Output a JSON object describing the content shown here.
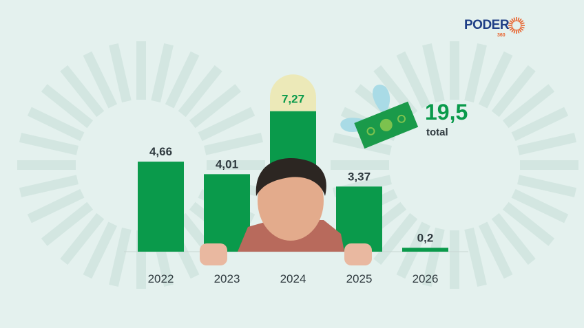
{
  "brand": {
    "logo": "PODER",
    "logo_sub": "360",
    "logo_color": "#1f3f86",
    "sun_color": "#e8612b"
  },
  "total": {
    "value": "19,5",
    "label": "total",
    "icon": "flying-money-icon"
  },
  "colors": {
    "bar": "#0a9a4b",
    "highlight_cap": "#ece9b8",
    "background": "#e4f1ee",
    "rays": "#d3e6e1"
  },
  "chart_data": {
    "type": "bar",
    "categories": [
      "2022",
      "2023",
      "2024",
      "2025",
      "2026"
    ],
    "values": [
      4.66,
      4.01,
      7.27,
      3.37,
      0.2
    ],
    "labels": [
      "4,66",
      "4,01",
      "7,27",
      "3,37",
      "0,2"
    ],
    "highlight": "2024",
    "ylim": [
      0,
      8
    ],
    "grid": false
  }
}
